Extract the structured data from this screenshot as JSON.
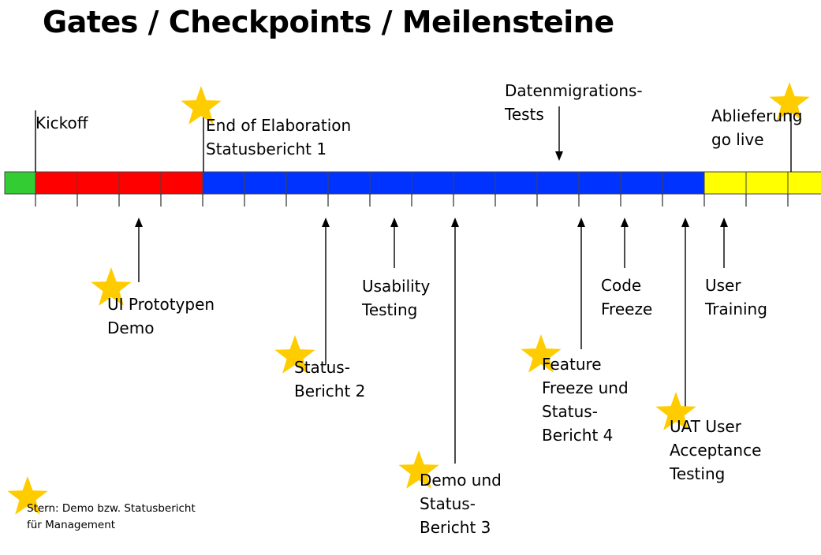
{
  "title": "Gates / Checkpoints / Meilensteine",
  "colors": {
    "green": "#33cc33",
    "red": "#ff0000",
    "blue": "#0033ff",
    "yellow": "#ffff00",
    "star": "#ffcc00",
    "line": "#000000"
  },
  "timeline": {
    "segments": [
      {
        "color": "green"
      },
      {
        "color": "red"
      },
      {
        "color": "red"
      },
      {
        "color": "red"
      },
      {
        "color": "red"
      },
      {
        "color": "blue"
      },
      {
        "color": "blue"
      },
      {
        "color": "blue"
      },
      {
        "color": "blue"
      },
      {
        "color": "blue"
      },
      {
        "color": "blue"
      },
      {
        "color": "blue"
      },
      {
        "color": "blue"
      },
      {
        "color": "blue"
      },
      {
        "color": "blue"
      },
      {
        "color": "blue"
      },
      {
        "color": "blue"
      },
      {
        "color": "yellow"
      },
      {
        "color": "yellow"
      },
      {
        "color": "yellow"
      }
    ]
  },
  "milestones": {
    "kickoff": {
      "lines": [
        "Kickoff"
      ],
      "star": false
    },
    "ui_prototype": {
      "lines": [
        "UI Prototypen",
        "Demo"
      ],
      "star": true
    },
    "end_of_elaboration": {
      "lines": [
        "End of Elaboration",
        "Statusbericht 1"
      ],
      "star": true
    },
    "status_report_2": {
      "lines": [
        "Status-",
        "Bericht 2"
      ],
      "star": true
    },
    "usability_testing": {
      "lines": [
        "Usability",
        "Testing"
      ],
      "star": false
    },
    "demo_status_report_3": {
      "lines": [
        "Demo und",
        "Status-",
        "Bericht 3"
      ],
      "star": true
    },
    "data_migration_tests": {
      "lines": [
        "Datenmigrations-",
        "Tests"
      ],
      "star": false
    },
    "feature_freeze": {
      "lines": [
        "Feature",
        "Freeze und",
        "Status-",
        "Bericht 4"
      ],
      "star": true
    },
    "code_freeze": {
      "lines": [
        "Code",
        "Freeze"
      ],
      "star": false
    },
    "uat": {
      "lines": [
        "UAT User",
        "Acceptance",
        "Testing"
      ],
      "star": true
    },
    "user_training": {
      "lines": [
        "User",
        "Training"
      ],
      "star": false
    },
    "delivery_go_live": {
      "lines": [
        "Ablieferung",
        "go live"
      ],
      "star": true
    }
  },
  "legend": {
    "lines": [
      "Stern: Demo bzw. Statusbericht",
      "für Management"
    ]
  }
}
